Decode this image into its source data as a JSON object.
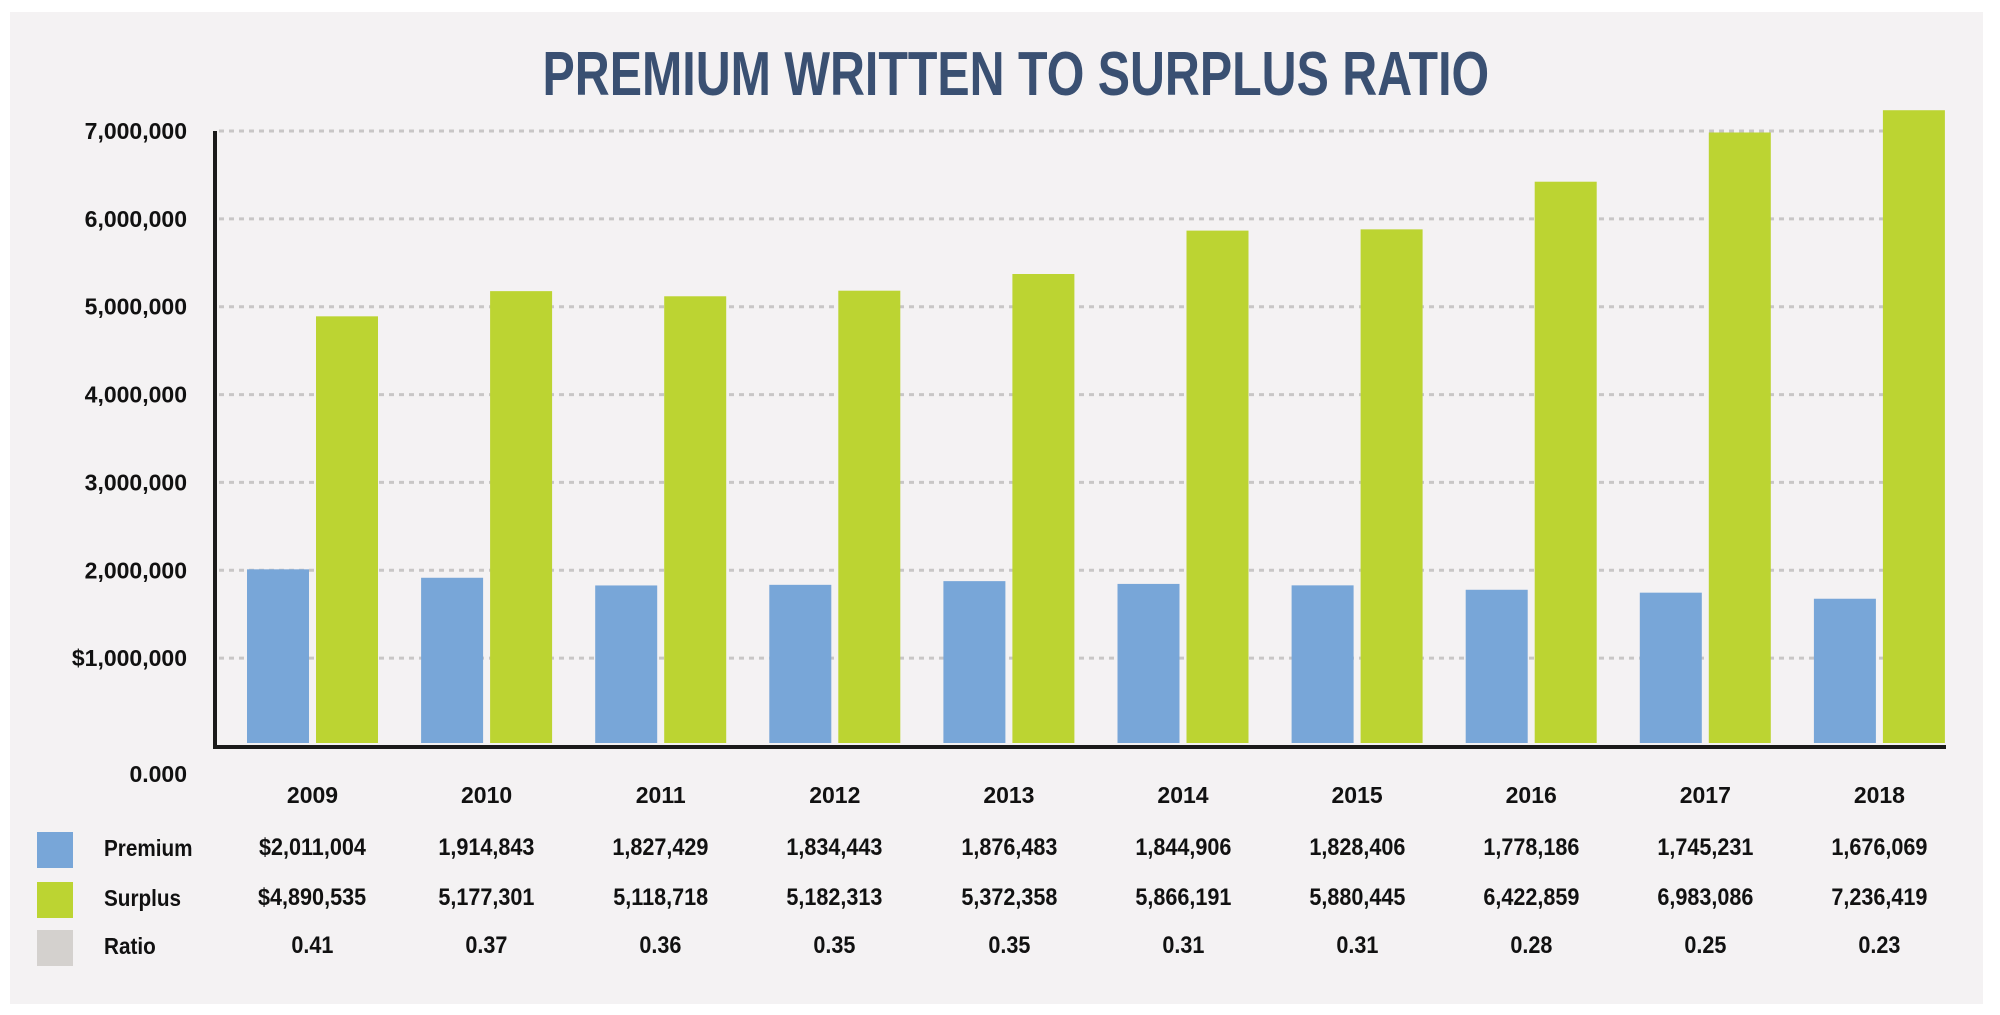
{
  "chart_data": {
    "type": "bar",
    "title": "PREMIUM WRITTEN TO SURPLUS RATIO",
    "xlabel": "",
    "ylabel": "",
    "categories": [
      "2009",
      "2010",
      "2011",
      "2012",
      "2013",
      "2014",
      "2015",
      "2016",
      "2017",
      "2018"
    ],
    "series": [
      {
        "name": "Premium",
        "color": "#78a6d8",
        "values": [
          2011004,
          1914843,
          1827429,
          1834443,
          1876483,
          1844906,
          1828406,
          1778186,
          1745231,
          1676069
        ]
      },
      {
        "name": "Surplus",
        "color": "#bcd432",
        "values": [
          4890535,
          5177301,
          5118718,
          5182313,
          5372358,
          5866191,
          5880445,
          6422859,
          6983086,
          7236419
        ]
      }
    ],
    "ylim": [
      0,
      7000000
    ],
    "yticks": [
      0,
      1000000,
      2000000,
      3000000,
      4000000,
      5000000,
      6000000,
      7000000
    ],
    "ytick_labels": [
      "0.000",
      "$1,000,000",
      "2,000,000",
      "3,000,000",
      "4,000,000",
      "5,000,000",
      "6,000,000",
      "7,000,000"
    ],
    "grid": true,
    "legend": "bottom-left (as data table)",
    "table": {
      "rows": [
        {
          "label": "Premium",
          "color": "#78a6d8",
          "cells": [
            "$2,011,004",
            "1,914,843",
            "1,827,429",
            "1,834,443",
            "1,876,483",
            "1,844,906",
            "1,828,406",
            "1,778,186",
            "1,745,231",
            "1,676,069"
          ]
        },
        {
          "label": "Surplus",
          "color": "#bcd432",
          "cells": [
            "$4,890,535",
            "5,177,301",
            "5,118,718",
            "5,182,313",
            "5,372,358",
            "5,866,191",
            "5,880,445",
            "6,422,859",
            "6,983,086",
            "7,236,419"
          ]
        },
        {
          "label": "Ratio",
          "color": "#d4d1ce",
          "cells": [
            "0.41",
            "0.37",
            "0.36",
            "0.35",
            "0.35",
            "0.31",
            "0.31",
            "0.28",
            "0.25",
            "0.23"
          ]
        }
      ]
    }
  },
  "colors": {
    "title": "#3a5072",
    "background": "#f4f2f3",
    "axis": "#1a1a1a",
    "grid": "#c8c6c6"
  }
}
